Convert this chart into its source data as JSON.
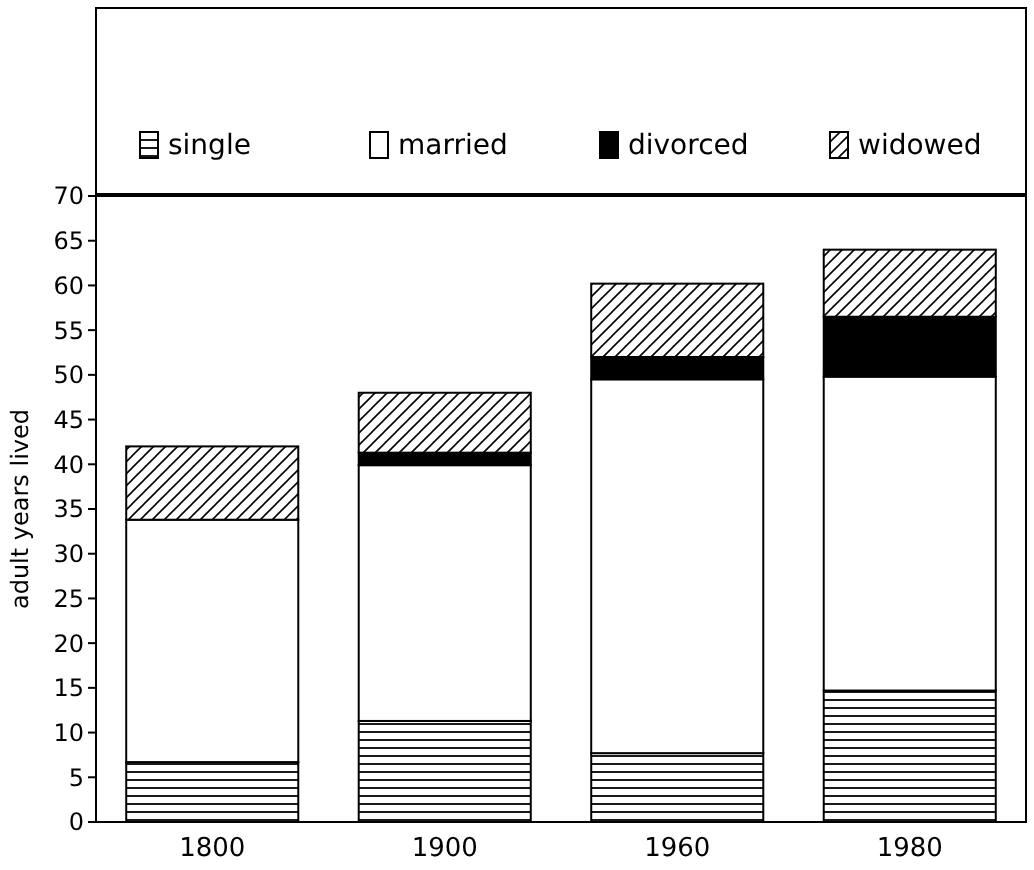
{
  "chart_data": {
    "type": "bar",
    "stacked": true,
    "ylabel": "adult years lived",
    "categories": [
      "1800",
      "1900",
      "1960",
      "1980"
    ],
    "series": [
      {
        "name": "single",
        "color": "#000000",
        "values": [
          6.7,
          11.3,
          7.7,
          14.7
        ]
      },
      {
        "name": "married",
        "color": "#ffffff",
        "values": [
          27.1,
          28.6,
          41.8,
          35.1
        ]
      },
      {
        "name": "divorced",
        "color": "#000000",
        "values": [
          0,
          1.4,
          2.5,
          6.7
        ]
      },
      {
        "name": "widowed",
        "color": "#000000",
        "values": [
          8.2,
          6.7,
          8.2,
          7.5
        ]
      }
    ],
    "ylim": [
      0,
      70
    ],
    "yticks": [
      0,
      5,
      10,
      15,
      20,
      25,
      30,
      35,
      40,
      45,
      50,
      55,
      60,
      65,
      70
    ],
    "legend": "top",
    "grid": false
  }
}
